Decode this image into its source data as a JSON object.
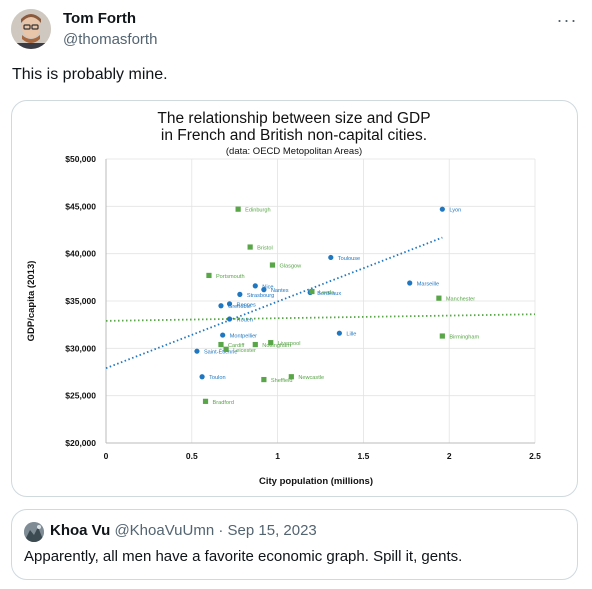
{
  "author": {
    "name": "Tom Forth",
    "handle": "@thomasforth"
  },
  "more_icon": "more-horizontal-icon",
  "tweet_text": "This is probably mine.",
  "quote": {
    "name": "Khoa Vu",
    "handle": "@KhoaVuUmn",
    "separator": "·",
    "date": "Sep 15, 2023",
    "text": "Apparently, all men have a favorite economic graph. Spill it, gents."
  },
  "chart_data": {
    "type": "scatter",
    "title": "The relationship between size and GDP",
    "title2": "in French and British non-capital cities.",
    "subtitle": "(data: OECD Metopolitan Areas)",
    "xlabel": "City population (millions)",
    "ylabel": "GDP/capita (2013)",
    "xlim": [
      0,
      2.5
    ],
    "ylim": [
      20000,
      50000
    ],
    "x_ticks": [
      "0",
      "0.5",
      "1",
      "1.5",
      "2",
      "2.5"
    ],
    "y_ticks": [
      "$20,000",
      "$25,000",
      "$30,000",
      "$35,000",
      "$40,000",
      "$45,000",
      "$50,000"
    ],
    "grid": true,
    "legend": "none",
    "colors": {
      "france": "#1f77c2",
      "uk": "#59a648"
    },
    "series": [
      {
        "country": "France",
        "marker": "circle",
        "points": [
          {
            "label": "Lyon",
            "x": 1.96,
            "y": 44700
          },
          {
            "label": "Toulouse",
            "x": 1.31,
            "y": 39600
          },
          {
            "label": "Marseille",
            "x": 1.77,
            "y": 36900
          },
          {
            "label": "Nice",
            "x": 0.87,
            "y": 36600
          },
          {
            "label": "Nantes",
            "x": 0.92,
            "y": 36200
          },
          {
            "label": "Strasbourg",
            "x": 0.78,
            "y": 35700
          },
          {
            "label": "Bordeaux",
            "x": 1.19,
            "y": 35900
          },
          {
            "label": "Rennes",
            "x": 0.72,
            "y": 34700
          },
          {
            "label": "Grenoble",
            "x": 0.67,
            "y": 34500
          },
          {
            "label": "Rouen",
            "x": 0.72,
            "y": 33100
          },
          {
            "label": "Lille",
            "x": 1.36,
            "y": 31600
          },
          {
            "label": "Montpellier",
            "x": 0.68,
            "y": 31400
          },
          {
            "label": "Saint-Étienne",
            "x": 0.53,
            "y": 29700
          },
          {
            "label": "Toulon",
            "x": 0.56,
            "y": 27000
          }
        ]
      },
      {
        "country": "UK",
        "marker": "square",
        "points": [
          {
            "label": "Edinburgh",
            "x": 0.77,
            "y": 44700
          },
          {
            "label": "Bristol",
            "x": 0.84,
            "y": 40700
          },
          {
            "label": "Glasgow",
            "x": 0.97,
            "y": 38800
          },
          {
            "label": "Portsmouth",
            "x": 0.6,
            "y": 37700
          },
          {
            "label": "Leeds",
            "x": 1.2,
            "y": 36000
          },
          {
            "label": "Manchester",
            "x": 1.94,
            "y": 35300
          },
          {
            "label": "Birmingham",
            "x": 1.96,
            "y": 31300
          },
          {
            "label": "Cardiff",
            "x": 0.67,
            "y": 30400
          },
          {
            "label": "Liverpool",
            "x": 0.96,
            "y": 30600
          },
          {
            "label": "Leicester",
            "x": 0.7,
            "y": 29900
          },
          {
            "label": "Nottingham",
            "x": 0.87,
            "y": 30400
          },
          {
            "label": "Sheffield",
            "x": 0.92,
            "y": 26700
          },
          {
            "label": "Newcastle",
            "x": 1.08,
            "y": 27000
          },
          {
            "label": "Bradford",
            "x": 0.58,
            "y": 24400
          }
        ]
      }
    ],
    "trendlines": [
      {
        "country": "France",
        "style": "dotted",
        "from": [
          0,
          27900
        ],
        "to": [
          1.96,
          41700
        ]
      },
      {
        "country": "UK",
        "style": "dotted",
        "from": [
          0,
          32900
        ],
        "to": [
          2.5,
          33600
        ]
      }
    ]
  }
}
